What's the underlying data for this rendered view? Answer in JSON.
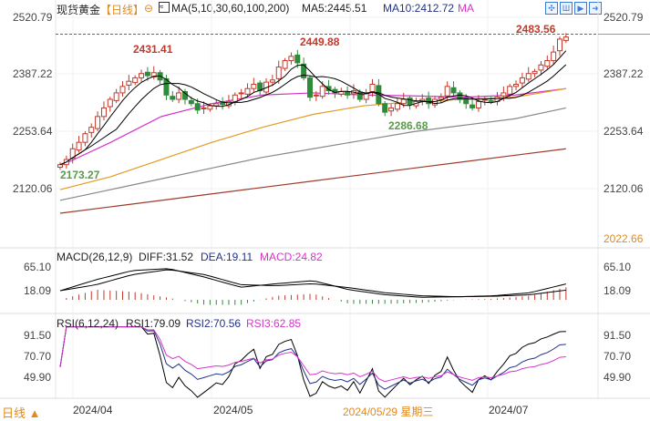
{
  "header": {
    "instrument": "现货黄金",
    "period": "【日线】",
    "indicator": "MA(5,10,30,60,100,200)",
    "ma5": "MA5:2445.51",
    "ma10": "MA10:2412.72",
    "ma_more": "MA"
  },
  "toolbar_icons": [
    "crosshair-icon",
    "chart-type-icon",
    "play-icon",
    "export-icon"
  ],
  "colors": {
    "up": "#c0392b",
    "down": "#2e8b3a",
    "ma5": "#000000",
    "ma10": "#000000",
    "ma30": "#d633c9",
    "ma60": "#e39b22",
    "ma100": "#888888",
    "ma200": "#a03a2a",
    "last": "#e08a20"
  },
  "macd_header": {
    "name": "MACD(26,12,9)",
    "diff": "DIFF:31.52",
    "dea": "DEA:19.11",
    "macd": "MACD:24.82"
  },
  "rsi_header": {
    "name": "RSI(6,12,24)",
    "rsi1": "RSI1:79.09",
    "rsi2": "RSI2:70.56",
    "rsi3": "RSI3:62.85"
  },
  "footer": {
    "period": "日线 ▲",
    "dates": [
      "2024/04",
      "2024/05",
      "2024/05/29 星期三",
      "2024/07"
    ]
  },
  "chart_data": {
    "type": "candlestick",
    "price_ticks": [
      "2520.79",
      "2387.22",
      "2253.64",
      "2120.06"
    ],
    "last_price_label": "2022.66",
    "ylim": [
      2022.66,
      2520.79
    ],
    "annotations": {
      "high1": "2431.41",
      "high2": "2449.88",
      "high3": "2483.56",
      "low1": "2173.27",
      "low2": "2286.68"
    },
    "closes": [
      2178,
      2190,
      2215,
      2230,
      2250,
      2265,
      2290,
      2310,
      2330,
      2345,
      2360,
      2372,
      2380,
      2390,
      2385,
      2392,
      2375,
      2340,
      2330,
      2345,
      2330,
      2320,
      2305,
      2310,
      2315,
      2320,
      2318,
      2325,
      2340,
      2345,
      2355,
      2365,
      2350,
      2370,
      2375,
      2405,
      2420,
      2430,
      2415,
      2380,
      2335,
      2340,
      2360,
      2350,
      2345,
      2348,
      2340,
      2350,
      2330,
      2345,
      2365,
      2320,
      2300,
      2310,
      2320,
      2330,
      2318,
      2325,
      2330,
      2320,
      2330,
      2335,
      2360,
      2345,
      2330,
      2320,
      2310,
      2325,
      2330,
      2325,
      2335,
      2345,
      2360,
      2365,
      2380,
      2390,
      2395,
      2410,
      2420,
      2440,
      2470,
      2475
    ],
    "ma_slow": {
      "MA30": [
        2175,
        2230,
        2290,
        2320,
        2340,
        2345,
        2340,
        2338,
        2335,
        2340,
        2355
      ],
      "MA60": [
        2120,
        2150,
        2190,
        2230,
        2265,
        2295,
        2315,
        2325,
        2330,
        2335,
        2355
      ],
      "MA100": [
        2095,
        2120,
        2145,
        2170,
        2195,
        2215,
        2235,
        2255,
        2270,
        2285,
        2310
      ],
      "MA200": [
        2065,
        2080,
        2095,
        2110,
        2125,
        2140,
        2155,
        2170,
        2185,
        2200,
        2215
      ]
    },
    "macd": {
      "ticks": [
        "65.10",
        "18.09"
      ],
      "diff": [
        18,
        40,
        58,
        62,
        45,
        25,
        32,
        38,
        20,
        10,
        5,
        6,
        8,
        14,
        31.52
      ],
      "dea": [
        18,
        30,
        50,
        60,
        50,
        30,
        28,
        32,
        24,
        14,
        8,
        6,
        7,
        10,
        19.11
      ]
    },
    "rsi": {
      "ticks": [
        "91.50",
        "70.70",
        "49.90"
      ]
    }
  }
}
